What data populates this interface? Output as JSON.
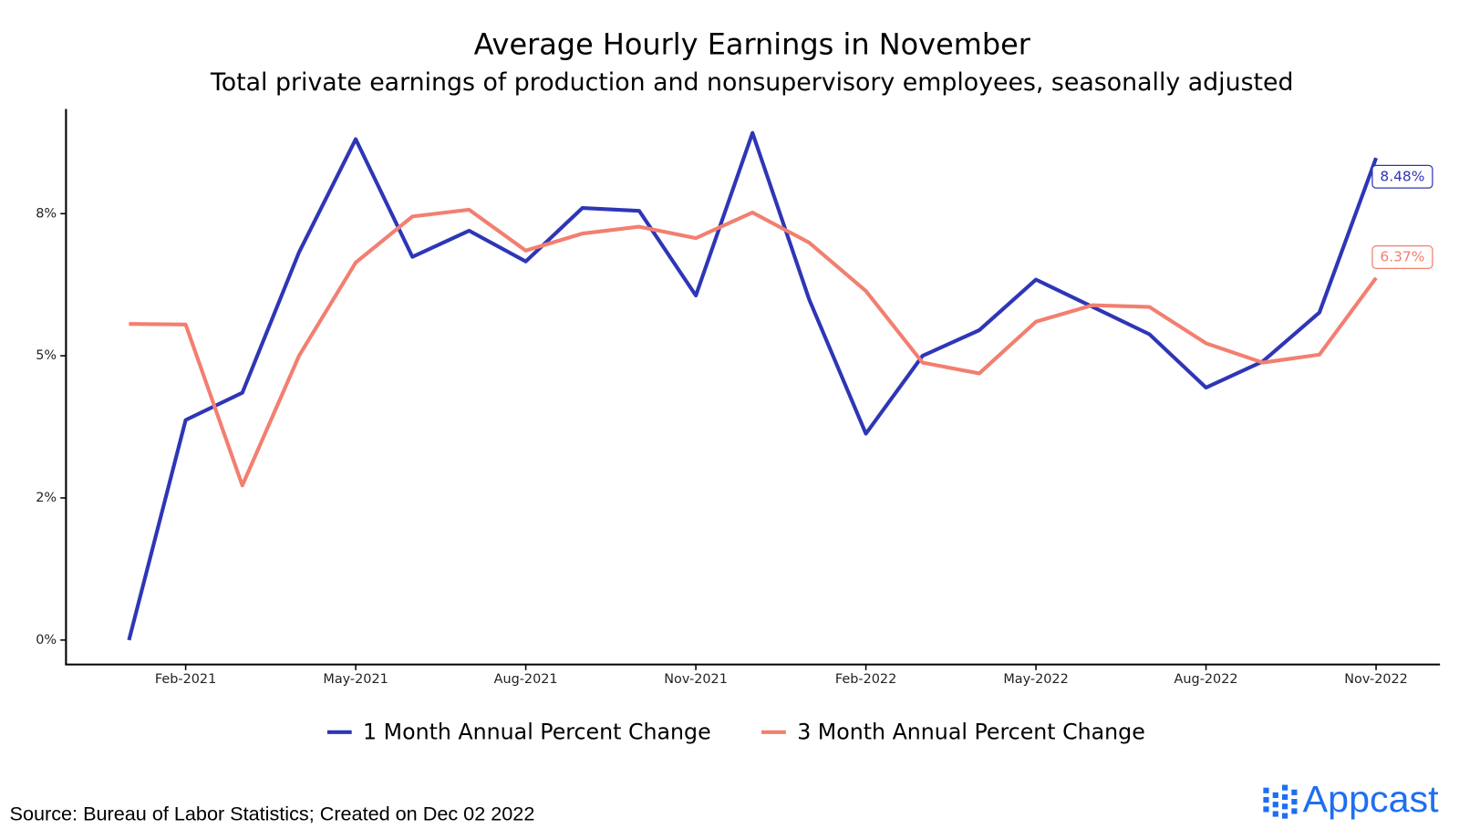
{
  "chart_data": {
    "type": "line",
    "title": "Average Hourly Earnings in November",
    "subtitle": "Total private earnings of production and nonsupervisory employees, seasonally adjusted",
    "source": "Source: Bureau of Labor Statistics; Created on Dec 02 2022",
    "brand": "Appcast",
    "categories": [
      null,
      "Feb-2021",
      null,
      null,
      "May-2021",
      null,
      null,
      "Aug-2021",
      null,
      null,
      "Nov-2021",
      null,
      null,
      "Feb-2022",
      null,
      null,
      "May-2022",
      null,
      null,
      "Aug-2022",
      null,
      null,
      "Nov-2022"
    ],
    "series": [
      {
        "name": "1 Month Annual Percent Change",
        "color": "#2e36b6",
        "values": [
          0,
          3.87,
          4.35,
          6.82,
          8.81,
          6.74,
          7.2,
          6.66,
          7.6,
          7.55,
          6.06,
          8.92,
          5.99,
          3.63,
          5.0,
          5.45,
          6.34,
          5.86,
          5.38,
          4.44,
          4.9,
          5.76,
          8.48
        ],
        "value_labels": [
          null,
          null,
          null,
          null,
          null,
          null,
          null,
          null,
          null,
          null,
          null,
          null,
          null,
          null,
          null,
          null,
          null,
          null,
          null,
          null,
          null,
          null,
          "8.48%"
        ]
      },
      {
        "name": "3 Month Annual Percent Change",
        "color": "#f27f70",
        "values": [
          5.56,
          5.55,
          2.72,
          5.0,
          6.64,
          7.45,
          7.57,
          6.85,
          7.15,
          7.27,
          7.07,
          7.52,
          6.99,
          6.14,
          4.88,
          4.69,
          5.6,
          5.89,
          5.86,
          5.22,
          4.88,
          5.02,
          6.37
        ],
        "value_labels": [
          null,
          null,
          null,
          null,
          null,
          null,
          null,
          null,
          null,
          null,
          null,
          null,
          null,
          null,
          null,
          null,
          null,
          null,
          null,
          null,
          null,
          null,
          "6.37%"
        ]
      }
    ],
    "ylim": [
      -0.43,
      9.34
    ],
    "yticks": [
      {
        "value": 0,
        "label": "0%"
      },
      {
        "value": 2.5,
        "label": "2%"
      },
      {
        "value": 5,
        "label": "5%"
      },
      {
        "value": 7.5,
        "label": "8%"
      }
    ],
    "grid": false,
    "legend": "bottom"
  }
}
